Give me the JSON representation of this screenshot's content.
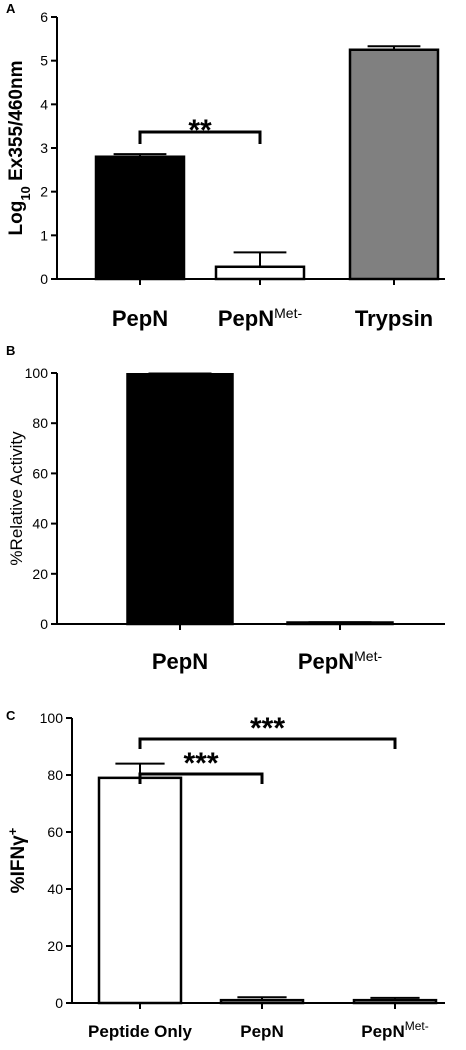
{
  "chart_data": [
    {
      "panel": "A",
      "type": "bar",
      "ylabel": "Log10 Ex355/460nm",
      "ylabel_parts": {
        "pre": "Log",
        "sub": "10",
        "post": " Ex355/460nm"
      },
      "ylim": [
        0,
        6
      ],
      "yticks": [
        0,
        1,
        2,
        3,
        4,
        5,
        6
      ],
      "categories": [
        {
          "main": "PepN",
          "sup": ""
        },
        {
          "main": "PepN",
          "sup": "Met-"
        },
        {
          "main": "Trypsin",
          "sup": ""
        }
      ],
      "values": [
        2.8,
        0.28,
        5.25
      ],
      "errors": [
        0.06,
        0.33,
        0.08
      ],
      "colors": [
        "#000000",
        "#ffffff",
        "#808080"
      ],
      "significance": [
        {
          "from": 0,
          "to": 1,
          "label": "**"
        }
      ]
    },
    {
      "panel": "B",
      "type": "bar",
      "ylabel": "%Relative Activity",
      "ylim": [
        0,
        100
      ],
      "yticks": [
        0,
        20,
        40,
        60,
        80,
        100
      ],
      "categories": [
        {
          "main": "PepN",
          "sup": ""
        },
        {
          "main": "PepN",
          "sup": "Met-"
        }
      ],
      "values": [
        99.5,
        0.6
      ],
      "errors": [
        0.3,
        0.1
      ],
      "colors": [
        "#000000",
        "#000000"
      ],
      "significance": []
    },
    {
      "panel": "C",
      "type": "bar",
      "ylabel": "%IFNγ+",
      "ylabel_parts": {
        "pre": "%IFNγ",
        "sup": "+"
      },
      "ylim": [
        0,
        100
      ],
      "yticks": [
        0,
        20,
        40,
        60,
        80,
        100
      ],
      "categories": [
        {
          "main": "Peptide Only",
          "sup": ""
        },
        {
          "main": "PepN",
          "sup": ""
        },
        {
          "main": "PepN",
          "sup": "Met-"
        }
      ],
      "values": [
        79,
        1,
        1
      ],
      "errors": [
        5,
        1,
        0.8
      ],
      "colors": [
        "#ffffff",
        "#ffffff",
        "#ffffff"
      ],
      "significance": [
        {
          "from": 0,
          "to": 1,
          "label": "***"
        },
        {
          "from": 0,
          "to": 2,
          "label": "***"
        }
      ]
    }
  ]
}
